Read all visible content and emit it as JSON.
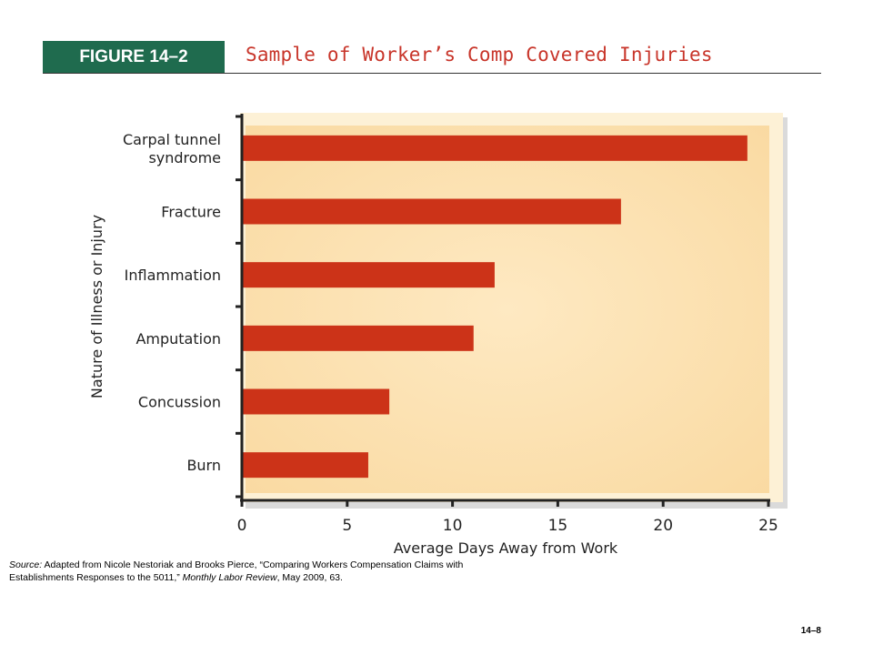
{
  "header": {
    "figure_label": "FIGURE 14–2",
    "title": "Sample of Worker’s Comp Covered Injuries"
  },
  "chart_data": {
    "type": "bar",
    "orientation": "horizontal",
    "categories": [
      "Carpal tunnel syndrome",
      "Fracture",
      "Inflammation",
      "Amputation",
      "Concussion",
      "Burn"
    ],
    "values": [
      24,
      18,
      12,
      11,
      7,
      6
    ],
    "xlabel": "Average Days Away from Work",
    "ylabel": "Nature of Illness or Injury",
    "xlim": [
      0,
      25
    ],
    "xticks": [
      "0",
      "5",
      "10",
      "15",
      "20",
      "25"
    ],
    "grid": false,
    "bar_color": "#cc3318",
    "background_color": "#fde7bd"
  },
  "source": {
    "label": "Source:",
    "text_1": " Adapted from Nicole Nestoriak and Brooks Pierce, “Comparing Workers Compensation Claims with Establishments Responses to the 5011,” ",
    "journal": "Monthly Labor Review",
    "text_2": ", May 2009, 63."
  },
  "page_number": "14–8"
}
